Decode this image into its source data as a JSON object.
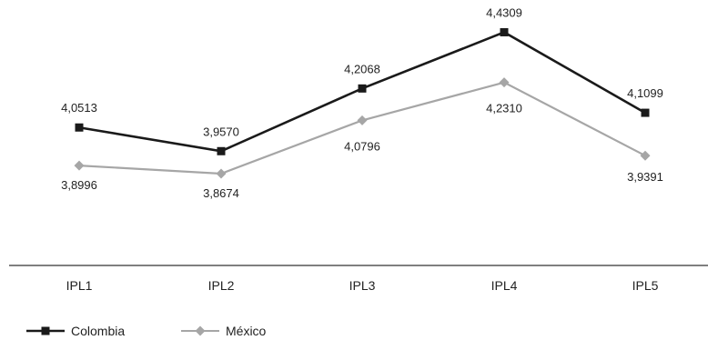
{
  "chart_data": {
    "type": "line",
    "categories": [
      "IPL1",
      "IPL2",
      "IPL3",
      "IPL4",
      "IPL5"
    ],
    "series": [
      {
        "name": "Colombia",
        "values": [
          4.0513,
          3.957,
          4.2068,
          4.4309,
          4.1099
        ],
        "labels": [
          "4,0513",
          "3,9570",
          "4,2068",
          "4,4309",
          "4,1099"
        ],
        "color": "#1a1a1a",
        "marker": "square"
      },
      {
        "name": "México",
        "values": [
          3.8996,
          3.8674,
          4.0796,
          4.231,
          3.9391
        ],
        "labels": [
          "3,8996",
          "3,8674",
          "4,0796",
          "4,2310",
          "3,9391"
        ],
        "color": "#a6a6a6",
        "marker": "diamond"
      }
    ],
    "title": "",
    "xlabel": "",
    "ylabel": "",
    "grid": false,
    "legend_position": "bottom-left"
  }
}
